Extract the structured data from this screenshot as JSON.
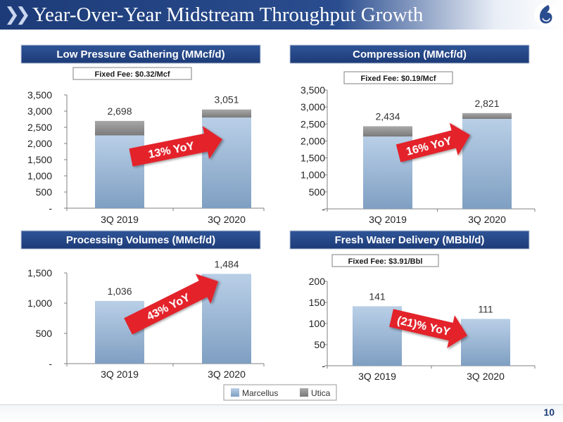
{
  "page": {
    "title": "Year-Over-Year Midstream Throughput Growth",
    "page_number": "10",
    "legend": [
      {
        "name": "Marcellus",
        "color": "#a9c2df"
      },
      {
        "name": "Utica",
        "color": "#8c8c8c"
      }
    ],
    "colors": {
      "header_blue": "#1d3b78",
      "arrow_red": "#e3202c",
      "marcellus": "#a9c2df",
      "utica": "#8c8c8c"
    }
  },
  "chart_data": [
    {
      "type": "bar",
      "stacked": true,
      "title": "Low Pressure Gathering (MMcf/d)",
      "note": "Fixed Fee: $0.32/Mcf",
      "categories": [
        "3Q 2019",
        "3Q 2020"
      ],
      "series": [
        {
          "name": "Marcellus",
          "values": [
            2250,
            2800
          ]
        },
        {
          "name": "Utica",
          "values": [
            448,
            251
          ]
        }
      ],
      "totals": [
        "2,698",
        "3,051"
      ],
      "y_ticks": [
        "-",
        "500",
        "1,000",
        "1,500",
        "2,000",
        "2,500",
        "3,000",
        "3,500"
      ],
      "ylim": [
        0,
        3500
      ],
      "arrow_label": "13% YoY",
      "arrow_direction": "up"
    },
    {
      "type": "bar",
      "stacked": true,
      "title": "Compression (MMcf/d)",
      "note": "Fixed Fee: $0.19/Mcf",
      "categories": [
        "3Q 2019",
        "3Q 2020"
      ],
      "series": [
        {
          "name": "Marcellus",
          "values": [
            2130,
            2650
          ]
        },
        {
          "name": "Utica",
          "values": [
            304,
            171
          ]
        }
      ],
      "totals": [
        "2,434",
        "2,821"
      ],
      "y_ticks": [
        "-",
        "500",
        "1,000",
        "1,500",
        "2,000",
        "2,500",
        "3,000",
        "3,500"
      ],
      "ylim": [
        0,
        3500
      ],
      "arrow_label": "16% YoY",
      "arrow_direction": "up"
    },
    {
      "type": "bar",
      "stacked": false,
      "title": "Processing Volumes (MMcf/d)",
      "note": "",
      "categories": [
        "3Q 2019",
        "3Q 2020"
      ],
      "series": [
        {
          "name": "Marcellus",
          "values": [
            1036,
            1484
          ]
        }
      ],
      "totals": [
        "1,036",
        "1,484"
      ],
      "y_ticks": [
        "-",
        "500",
        "1,000",
        "1,500"
      ],
      "ylim": [
        0,
        1500
      ],
      "arrow_label": "43% YoY",
      "arrow_direction": "up"
    },
    {
      "type": "bar",
      "stacked": false,
      "title": "Fresh Water Delivery (MBbl/d)",
      "note": "Fixed Fee: $3.91/Bbl",
      "categories": [
        "3Q 2019",
        "3Q 2020"
      ],
      "series": [
        {
          "name": "Marcellus",
          "values": [
            141,
            111
          ]
        }
      ],
      "totals": [
        "141",
        "111"
      ],
      "y_ticks": [
        "-",
        "50",
        "100",
        "150",
        "200"
      ],
      "ylim": [
        0,
        200
      ],
      "arrow_label": "(21)% YoY",
      "arrow_direction": "down"
    }
  ]
}
